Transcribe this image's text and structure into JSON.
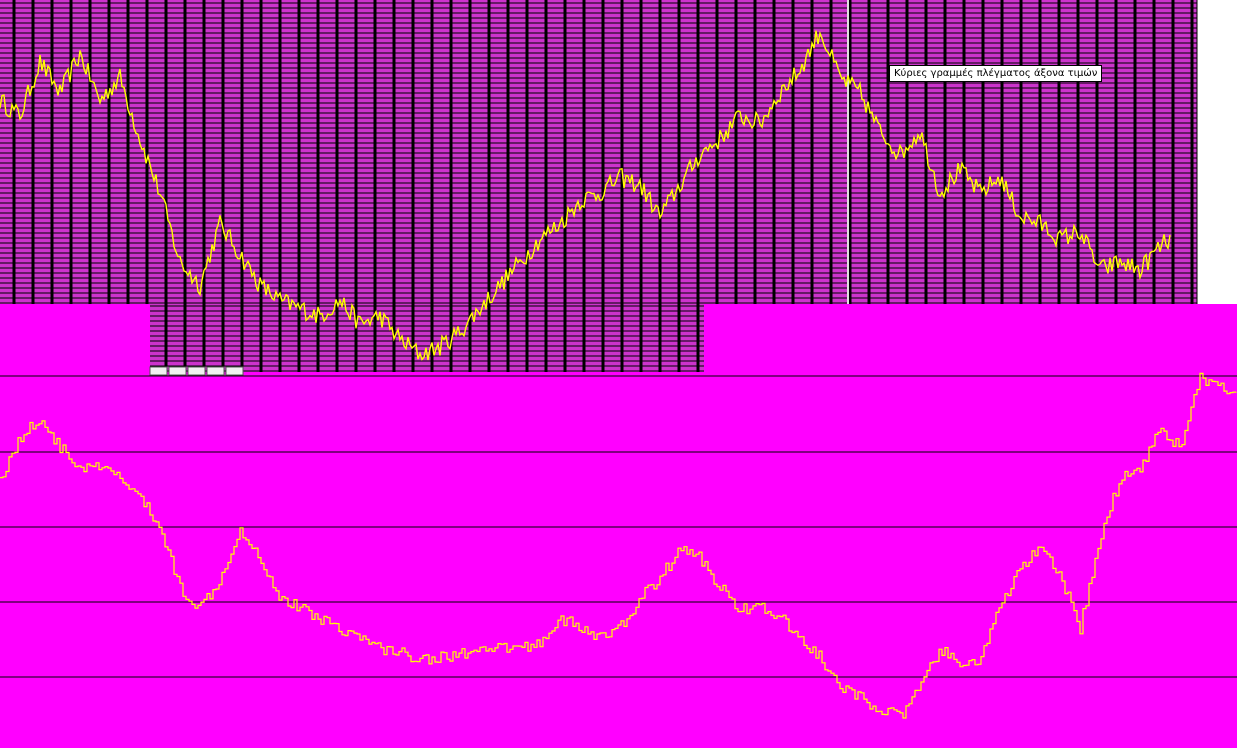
{
  "tooltip": {
    "text": "Κύριες γραμμές πλέγματος άξονα τιμών"
  },
  "colors": {
    "plot_background": "#ff00ff",
    "upper_panel_background": "#cc33cc",
    "grid": "#000000",
    "series": "#ffff00",
    "outside": "#ffffff"
  },
  "chart_data": [
    {
      "type": "line",
      "panel": "upper",
      "title": "",
      "xlabel": "",
      "ylabel": "",
      "grid": true,
      "series": [
        {
          "name": "",
          "color": "#ffff00",
          "x": [
            0,
            20,
            40,
            60,
            80,
            100,
            120,
            140,
            160,
            180,
            200,
            220,
            240,
            260,
            280,
            300,
            320,
            340,
            360,
            380,
            400,
            420,
            440,
            460,
            480,
            500,
            520,
            540,
            560,
            580,
            600,
            620,
            640,
            660,
            680,
            700,
            720,
            740,
            760,
            780,
            800,
            820,
            840,
            860,
            880,
            900,
            920,
            940,
            960,
            980,
            1000,
            1020,
            1040,
            1060,
            1080,
            1100,
            1120,
            1140,
            1160,
            1170
          ],
          "values": [
            70,
            66,
            80,
            72,
            82,
            70,
            76,
            60,
            46,
            28,
            22,
            38,
            30,
            22,
            18,
            16,
            14,
            18,
            12,
            14,
            8,
            4,
            6,
            10,
            16,
            22,
            28,
            34,
            38,
            44,
            46,
            50,
            48,
            40,
            48,
            56,
            60,
            66,
            64,
            72,
            78,
            88,
            76,
            72,
            62,
            56,
            62,
            46,
            52,
            46,
            50,
            40,
            38,
            34,
            36,
            26,
            28,
            26,
            32,
            34
          ]
        }
      ]
    },
    {
      "type": "line",
      "panel": "lower",
      "title": "",
      "xlabel": "",
      "ylabel": "",
      "grid": true,
      "series": [
        {
          "name": "",
          "color": "#ffff00",
          "x": [
            0,
            20,
            40,
            60,
            80,
            100,
            120,
            140,
            160,
            180,
            200,
            220,
            240,
            260,
            280,
            300,
            320,
            340,
            360,
            380,
            400,
            420,
            440,
            460,
            480,
            500,
            520,
            540,
            560,
            580,
            600,
            620,
            640,
            660,
            680,
            700,
            720,
            740,
            760,
            780,
            800,
            820,
            840,
            860,
            880,
            900,
            920,
            940,
            960,
            980,
            1000,
            1020,
            1040,
            1060,
            1080,
            1100,
            1120,
            1140,
            1160,
            1180,
            1200,
            1220,
            1237
          ],
          "values": [
            40,
            48,
            52,
            46,
            42,
            42,
            40,
            36,
            30,
            18,
            14,
            20,
            30,
            24,
            16,
            14,
            12,
            10,
            8,
            6,
            5,
            4,
            4,
            5,
            5,
            6,
            6,
            7,
            12,
            10,
            8,
            10,
            16,
            20,
            26,
            24,
            18,
            14,
            14,
            12,
            8,
            4,
            -2,
            -4,
            -6,
            -8,
            -2,
            6,
            2,
            4,
            14,
            22,
            26,
            20,
            10,
            28,
            40,
            42,
            50,
            46,
            60,
            58,
            56
          ]
        }
      ]
    }
  ]
}
